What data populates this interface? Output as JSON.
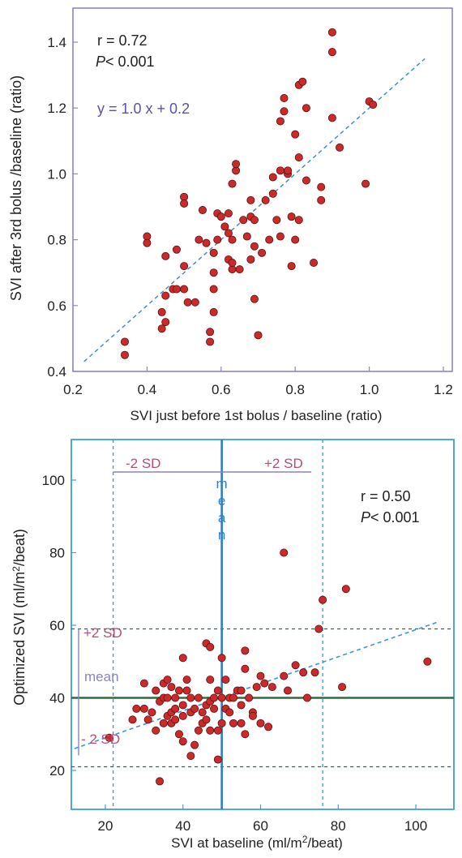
{
  "charts": [
    {
      "title": "",
      "xlabel": "SVI just before 1st bolus / baseline (ratio)",
      "ylabel": "SVI after 3rd bolus /baseline (ratio)",
      "xlim": [
        0.2,
        1.2
      ],
      "ylim": [
        0.4,
        1.45
      ],
      "xticks": [
        "0.2",
        "0.4",
        "0.6",
        "0.8",
        "1.0",
        "1.2"
      ],
      "yticks": [
        "0.4",
        "0.6",
        "0.8",
        "1.0",
        "1.2",
        "1.4"
      ],
      "stats": {
        "r": "r = 0.72",
        "p": "< 0.001",
        "p_symbol": "P"
      },
      "equation": "y = 1.0 x + 0.2",
      "colors": {
        "frame": "#8a86c8",
        "point": "#cc2a2a",
        "regression": "#3a86cc",
        "equation": "#5a52a6"
      }
    },
    {
      "title": "",
      "xlabel_parts": [
        "SVI at baseline (ml/m",
        "2",
        "/beat)"
      ],
      "ylabel_parts": [
        "Optimized SVI (ml/m",
        "2",
        "/beat)"
      ],
      "xlim": [
        12,
        106
      ],
      "ylim": [
        10,
        112
      ],
      "xticks": [
        "20",
        "40",
        "60",
        "80",
        "100"
      ],
      "yticks": [
        "20",
        "40",
        "60",
        "80",
        "100"
      ],
      "stats": {
        "r": "r = 0.50",
        "p": "< 0.001",
        "p_symbol": "P"
      },
      "annotations": {
        "x_minus_sd": "-2 SD",
        "x_plus_sd": "+2 SD",
        "x_mean_letters": [
          "m",
          "e",
          "a",
          "n"
        ],
        "y_plus_sd": "+2 SD",
        "y_mean": "mean",
        "y_minus_sd": "- 2 SD"
      },
      "colors": {
        "frame": "#3aa0d8",
        "point": "#cc2a2a",
        "regression": "#3a96d8",
        "mean_x": "#2f7fc4",
        "mean_y": "#2f6e3a",
        "sd_bar": "#8a84c8",
        "sd_text": "#b0507a"
      }
    }
  ],
  "chart_data": [
    {
      "type": "scatter",
      "title": "",
      "xlabel": "SVI just before 1st bolus / baseline (ratio)",
      "ylabel": "SVI after 3rd bolus /baseline (ratio)",
      "xlim": [
        0.2,
        1.2
      ],
      "ylim": [
        0.4,
        1.45
      ],
      "grid": false,
      "regression": {
        "slope": 1.0,
        "intercept": 0.2,
        "x_range": [
          0.23,
          1.15
        ]
      },
      "points": [
        [
          0.34,
          0.49
        ],
        [
          0.34,
          0.45
        ],
        [
          0.4,
          0.81
        ],
        [
          0.4,
          0.79
        ],
        [
          0.44,
          0.58
        ],
        [
          0.44,
          0.53
        ],
        [
          0.45,
          0.55
        ],
        [
          0.45,
          0.63
        ],
        [
          0.45,
          0.75
        ],
        [
          0.47,
          0.65
        ],
        [
          0.48,
          0.65
        ],
        [
          0.48,
          0.77
        ],
        [
          0.5,
          0.93
        ],
        [
          0.5,
          0.91
        ],
        [
          0.5,
          0.72
        ],
        [
          0.5,
          0.65
        ],
        [
          0.51,
          0.61
        ],
        [
          0.53,
          0.61
        ],
        [
          0.54,
          0.8
        ],
        [
          0.55,
          0.89
        ],
        [
          0.56,
          0.79
        ],
        [
          0.57,
          0.49
        ],
        [
          0.57,
          0.52
        ],
        [
          0.58,
          0.58
        ],
        [
          0.58,
          0.65
        ],
        [
          0.58,
          0.7
        ],
        [
          0.58,
          0.76
        ],
        [
          0.59,
          0.8
        ],
        [
          0.59,
          0.88
        ],
        [
          0.6,
          0.87
        ],
        [
          0.61,
          0.84
        ],
        [
          0.62,
          0.82
        ],
        [
          0.62,
          0.88
        ],
        [
          0.62,
          0.74
        ],
        [
          0.63,
          0.71
        ],
        [
          0.63,
          0.73
        ],
        [
          0.63,
          0.8
        ],
        [
          0.63,
          0.97
        ],
        [
          0.64,
          1.01
        ],
        [
          0.64,
          1.03
        ],
        [
          0.65,
          0.71
        ],
        [
          0.66,
          0.86
        ],
        [
          0.67,
          0.81
        ],
        [
          0.68,
          0.87
        ],
        [
          0.68,
          0.74
        ],
        [
          0.68,
          0.92
        ],
        [
          0.69,
          0.62
        ],
        [
          0.69,
          0.78
        ],
        [
          0.69,
          0.86
        ],
        [
          0.7,
          0.51
        ],
        [
          0.71,
          0.76
        ],
        [
          0.72,
          0.92
        ],
        [
          0.73,
          0.8
        ],
        [
          0.74,
          0.99
        ],
        [
          0.74,
          0.94
        ],
        [
          0.75,
          0.86
        ],
        [
          0.76,
          1.01
        ],
        [
          0.76,
          1.16
        ],
        [
          0.76,
          0.81
        ],
        [
          0.77,
          1.19
        ],
        [
          0.77,
          1.23
        ],
        [
          0.78,
          1.0
        ],
        [
          0.78,
          1.01
        ],
        [
          0.79,
          0.87
        ],
        [
          0.79,
          0.72
        ],
        [
          0.8,
          0.8
        ],
        [
          0.8,
          1.12
        ],
        [
          0.81,
          0.86
        ],
        [
          0.81,
          1.05
        ],
        [
          0.81,
          1.27
        ],
        [
          0.82,
          1.28
        ],
        [
          0.83,
          0.98
        ],
        [
          0.83,
          1.2
        ],
        [
          0.85,
          0.73
        ],
        [
          0.87,
          0.92
        ],
        [
          0.87,
          0.96
        ],
        [
          0.9,
          1.43
        ],
        [
          0.9,
          1.37
        ],
        [
          0.9,
          1.17
        ],
        [
          0.92,
          1.08
        ],
        [
          0.99,
          0.97
        ],
        [
          1.0,
          1.22
        ],
        [
          1.01,
          1.21
        ]
      ]
    },
    {
      "type": "scatter",
      "title": "",
      "xlabel": "SVI at baseline (ml/m2/beat)",
      "ylabel": "Optimized SVI (ml/m2/beat)",
      "xlim": [
        12,
        106
      ],
      "ylim": [
        10,
        112
      ],
      "grid": false,
      "regression": {
        "x_range": [
          12,
          106
        ],
        "y_range": [
          26,
          61
        ]
      },
      "reference_lines": {
        "x_mean": 50,
        "x_minus_2sd": 22,
        "x_plus_2sd": 76,
        "y_mean": 40,
        "y_plus_2sd": 59,
        "y_minus_2sd": 21
      },
      "points": [
        [
          21,
          29
        ],
        [
          27,
          34
        ],
        [
          28,
          37
        ],
        [
          30,
          37
        ],
        [
          30,
          44
        ],
        [
          31,
          34
        ],
        [
          32,
          36
        ],
        [
          33,
          42
        ],
        [
          33,
          31
        ],
        [
          34,
          17
        ],
        [
          34,
          39
        ],
        [
          35,
          40
        ],
        [
          35,
          44
        ],
        [
          35,
          33
        ],
        [
          36,
          35
        ],
        [
          36,
          45
        ],
        [
          36,
          40
        ],
        [
          37,
          36
        ],
        [
          37,
          33
        ],
        [
          37,
          43
        ],
        [
          38,
          37
        ],
        [
          38,
          40
        ],
        [
          38,
          34
        ],
        [
          39,
          30
        ],
        [
          39,
          42
        ],
        [
          40,
          38
        ],
        [
          40,
          35
        ],
        [
          40,
          28
        ],
        [
          40,
          51
        ],
        [
          41,
          45
        ],
        [
          41,
          42
        ],
        [
          42,
          36
        ],
        [
          42,
          40
        ],
        [
          42,
          24
        ],
        [
          43,
          27
        ],
        [
          43,
          37
        ],
        [
          44,
          31
        ],
        [
          44,
          40
        ],
        [
          45,
          33
        ],
        [
          45,
          36
        ],
        [
          46,
          38
        ],
        [
          46,
          34
        ],
        [
          46,
          55
        ],
        [
          47,
          54
        ],
        [
          47,
          31
        ],
        [
          47,
          39
        ],
        [
          47,
          45
        ],
        [
          48,
          40
        ],
        [
          48,
          37
        ],
        [
          49,
          42
        ],
        [
          49,
          31
        ],
        [
          49,
          23
        ],
        [
          50,
          51
        ],
        [
          50,
          33
        ],
        [
          50,
          40
        ],
        [
          51,
          37
        ],
        [
          51,
          45
        ],
        [
          52,
          36
        ],
        [
          52,
          40
        ],
        [
          53,
          40
        ],
        [
          53,
          33
        ],
        [
          54,
          42
        ],
        [
          55,
          38
        ],
        [
          55,
          42
        ],
        [
          55,
          33
        ],
        [
          56,
          48
        ],
        [
          56,
          53
        ],
        [
          56,
          30
        ],
        [
          57,
          40
        ],
        [
          58,
          36
        ],
        [
          58,
          35
        ],
        [
          59,
          43
        ],
        [
          60,
          33
        ],
        [
          60,
          46
        ],
        [
          61,
          44
        ],
        [
          62,
          32
        ],
        [
          63,
          43
        ],
        [
          66,
          46
        ],
        [
          66,
          80
        ],
        [
          67,
          42
        ],
        [
          69,
          49
        ],
        [
          71,
          47
        ],
        [
          72,
          40
        ],
        [
          74,
          47
        ],
        [
          75,
          59
        ],
        [
          76,
          67
        ],
        [
          81,
          43
        ],
        [
          82,
          70
        ],
        [
          103,
          50
        ]
      ]
    }
  ]
}
